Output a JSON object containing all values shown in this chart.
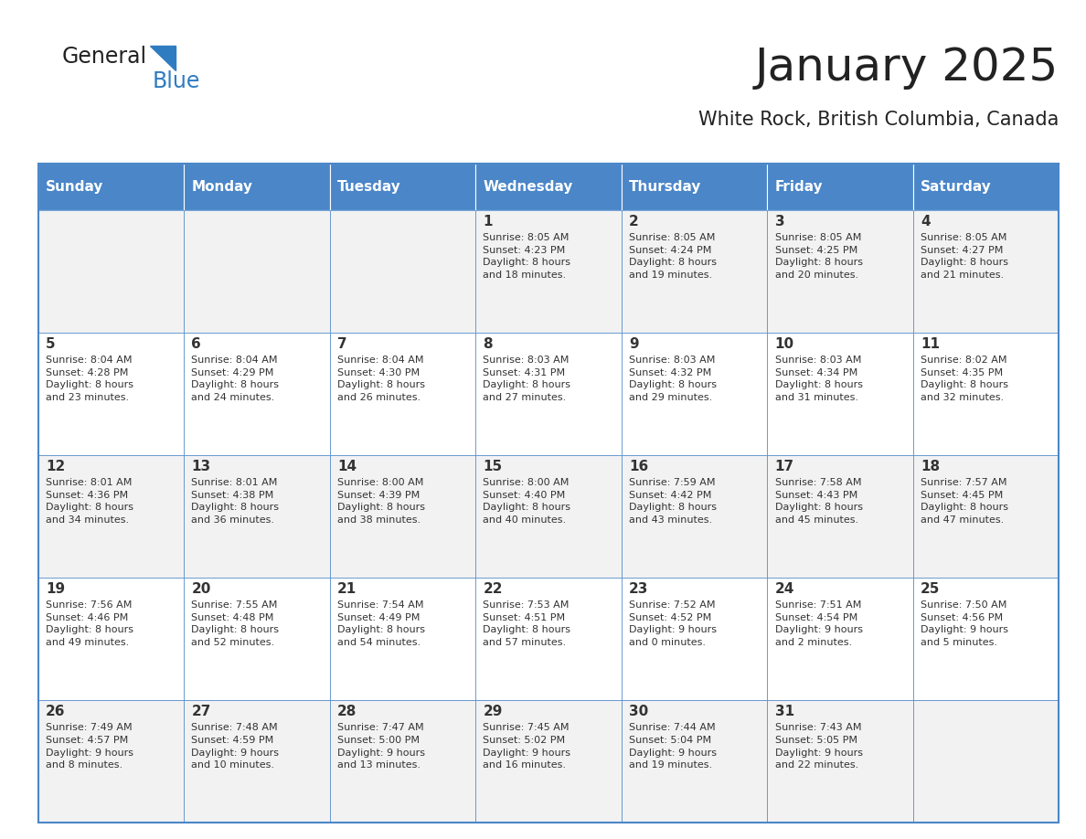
{
  "title": "January 2025",
  "subtitle": "White Rock, British Columbia, Canada",
  "days_of_week": [
    "Sunday",
    "Monday",
    "Tuesday",
    "Wednesday",
    "Thursday",
    "Friday",
    "Saturday"
  ],
  "header_bg": "#4A86C8",
  "header_text_color": "#FFFFFF",
  "odd_row_bg": "#F2F2F2",
  "even_row_bg": "#FFFFFF",
  "border_color": "#4A86C8",
  "text_color": "#333333",
  "title_color": "#222222",
  "logo_color_general": "#222222",
  "logo_color_blue": "#2F7CC1",
  "logo_triangle_color": "#2F7CC1",
  "calendar_data": [
    [
      null,
      null,
      null,
      {
        "day": 1,
        "sunrise": "8:05 AM",
        "sunset": "4:23 PM",
        "daylight": "8 hours\nand 18 minutes."
      },
      {
        "day": 2,
        "sunrise": "8:05 AM",
        "sunset": "4:24 PM",
        "daylight": "8 hours\nand 19 minutes."
      },
      {
        "day": 3,
        "sunrise": "8:05 AM",
        "sunset": "4:25 PM",
        "daylight": "8 hours\nand 20 minutes."
      },
      {
        "day": 4,
        "sunrise": "8:05 AM",
        "sunset": "4:27 PM",
        "daylight": "8 hours\nand 21 minutes."
      }
    ],
    [
      {
        "day": 5,
        "sunrise": "8:04 AM",
        "sunset": "4:28 PM",
        "daylight": "8 hours\nand 23 minutes."
      },
      {
        "day": 6,
        "sunrise": "8:04 AM",
        "sunset": "4:29 PM",
        "daylight": "8 hours\nand 24 minutes."
      },
      {
        "day": 7,
        "sunrise": "8:04 AM",
        "sunset": "4:30 PM",
        "daylight": "8 hours\nand 26 minutes."
      },
      {
        "day": 8,
        "sunrise": "8:03 AM",
        "sunset": "4:31 PM",
        "daylight": "8 hours\nand 27 minutes."
      },
      {
        "day": 9,
        "sunrise": "8:03 AM",
        "sunset": "4:32 PM",
        "daylight": "8 hours\nand 29 minutes."
      },
      {
        "day": 10,
        "sunrise": "8:03 AM",
        "sunset": "4:34 PM",
        "daylight": "8 hours\nand 31 minutes."
      },
      {
        "day": 11,
        "sunrise": "8:02 AM",
        "sunset": "4:35 PM",
        "daylight": "8 hours\nand 32 minutes."
      }
    ],
    [
      {
        "day": 12,
        "sunrise": "8:01 AM",
        "sunset": "4:36 PM",
        "daylight": "8 hours\nand 34 minutes."
      },
      {
        "day": 13,
        "sunrise": "8:01 AM",
        "sunset": "4:38 PM",
        "daylight": "8 hours\nand 36 minutes."
      },
      {
        "day": 14,
        "sunrise": "8:00 AM",
        "sunset": "4:39 PM",
        "daylight": "8 hours\nand 38 minutes."
      },
      {
        "day": 15,
        "sunrise": "8:00 AM",
        "sunset": "4:40 PM",
        "daylight": "8 hours\nand 40 minutes."
      },
      {
        "day": 16,
        "sunrise": "7:59 AM",
        "sunset": "4:42 PM",
        "daylight": "8 hours\nand 43 minutes."
      },
      {
        "day": 17,
        "sunrise": "7:58 AM",
        "sunset": "4:43 PM",
        "daylight": "8 hours\nand 45 minutes."
      },
      {
        "day": 18,
        "sunrise": "7:57 AM",
        "sunset": "4:45 PM",
        "daylight": "8 hours\nand 47 minutes."
      }
    ],
    [
      {
        "day": 19,
        "sunrise": "7:56 AM",
        "sunset": "4:46 PM",
        "daylight": "8 hours\nand 49 minutes."
      },
      {
        "day": 20,
        "sunrise": "7:55 AM",
        "sunset": "4:48 PM",
        "daylight": "8 hours\nand 52 minutes."
      },
      {
        "day": 21,
        "sunrise": "7:54 AM",
        "sunset": "4:49 PM",
        "daylight": "8 hours\nand 54 minutes."
      },
      {
        "day": 22,
        "sunrise": "7:53 AM",
        "sunset": "4:51 PM",
        "daylight": "8 hours\nand 57 minutes."
      },
      {
        "day": 23,
        "sunrise": "7:52 AM",
        "sunset": "4:52 PM",
        "daylight": "9 hours\nand 0 minutes."
      },
      {
        "day": 24,
        "sunrise": "7:51 AM",
        "sunset": "4:54 PM",
        "daylight": "9 hours\nand 2 minutes."
      },
      {
        "day": 25,
        "sunrise": "7:50 AM",
        "sunset": "4:56 PM",
        "daylight": "9 hours\nand 5 minutes."
      }
    ],
    [
      {
        "day": 26,
        "sunrise": "7:49 AM",
        "sunset": "4:57 PM",
        "daylight": "9 hours\nand 8 minutes."
      },
      {
        "day": 27,
        "sunrise": "7:48 AM",
        "sunset": "4:59 PM",
        "daylight": "9 hours\nand 10 minutes."
      },
      {
        "day": 28,
        "sunrise": "7:47 AM",
        "sunset": "5:00 PM",
        "daylight": "9 hours\nand 13 minutes."
      },
      {
        "day": 29,
        "sunrise": "7:45 AM",
        "sunset": "5:02 PM",
        "daylight": "9 hours\nand 16 minutes."
      },
      {
        "day": 30,
        "sunrise": "7:44 AM",
        "sunset": "5:04 PM",
        "daylight": "9 hours\nand 19 minutes."
      },
      {
        "day": 31,
        "sunrise": "7:43 AM",
        "sunset": "5:05 PM",
        "daylight": "9 hours\nand 22 minutes."
      },
      null
    ]
  ]
}
